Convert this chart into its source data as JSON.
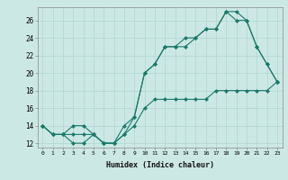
{
  "xlabel": "Humidex (Indice chaleur)",
  "background_color": "#cce8e4",
  "grid_color": "#b0d4d0",
  "line_color": "#1a7a6a",
  "xlim": [
    -0.5,
    23.5
  ],
  "ylim": [
    11.5,
    27.5
  ],
  "xticks": [
    0,
    1,
    2,
    3,
    4,
    5,
    6,
    7,
    8,
    9,
    10,
    11,
    12,
    13,
    14,
    15,
    16,
    17,
    18,
    19,
    20,
    21,
    22,
    23
  ],
  "yticks": [
    12,
    14,
    16,
    18,
    20,
    22,
    24,
    26
  ],
  "line1_x": [
    0,
    1,
    2,
    3,
    4,
    5,
    6,
    7,
    8,
    9,
    10,
    11,
    12,
    13,
    14,
    15,
    16,
    17,
    18,
    19,
    20,
    21,
    22,
    23
  ],
  "line1_y": [
    14,
    13,
    13,
    12,
    12,
    13,
    12,
    12,
    14,
    15,
    20,
    21,
    23,
    23,
    23,
    24,
    25,
    25,
    27,
    27,
    26,
    23,
    21,
    19
  ],
  "line2_x": [
    0,
    1,
    2,
    3,
    4,
    5,
    6,
    7,
    8,
    9,
    10,
    11,
    12,
    13,
    14,
    15,
    16,
    17,
    18,
    19,
    20,
    21,
    22,
    23
  ],
  "line2_y": [
    14,
    13,
    13,
    14,
    14,
    13,
    12,
    12,
    13,
    15,
    20,
    21,
    23,
    23,
    24,
    24,
    25,
    25,
    27,
    26,
    26,
    23,
    21,
    19
  ],
  "line3_x": [
    0,
    1,
    2,
    3,
    4,
    5,
    6,
    7,
    8,
    9,
    10,
    11,
    12,
    13,
    14,
    15,
    16,
    17,
    18,
    19,
    20,
    21,
    22,
    23
  ],
  "line3_y": [
    14,
    13,
    13,
    13,
    13,
    13,
    12,
    12,
    13,
    14,
    16,
    17,
    17,
    17,
    17,
    17,
    17,
    18,
    18,
    18,
    18,
    18,
    18,
    19
  ]
}
